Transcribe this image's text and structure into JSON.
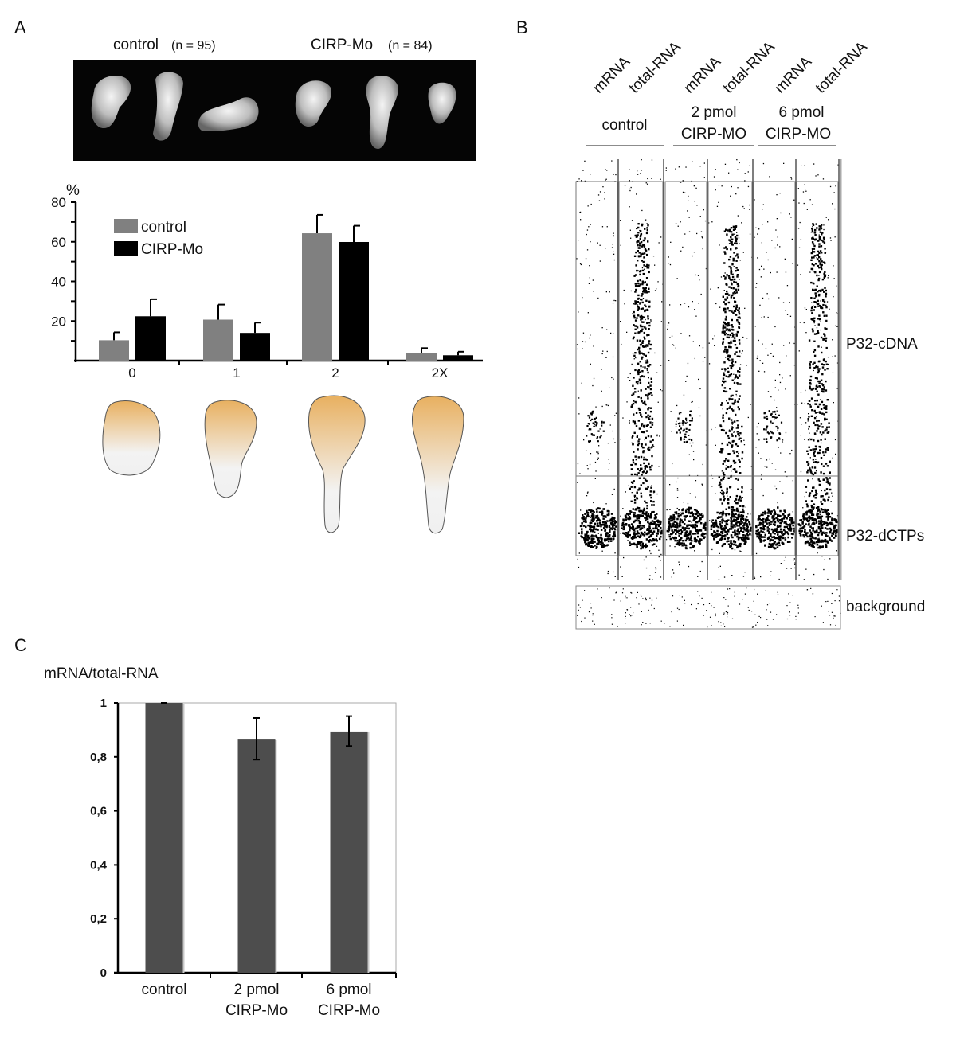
{
  "panels": {
    "A": {
      "letter": "A",
      "photo_titles": [
        {
          "name": "control",
          "n": "(n = 95)"
        },
        {
          "name": "CIRP-Mo",
          "n": "(n = 84)"
        }
      ],
      "y_unit": "%"
    },
    "B": {
      "letter": "B",
      "lane_labels": [
        "mRNA",
        "total-RNA",
        "mRNA",
        "total-RNA",
        "mRNA",
        "total-RNA"
      ],
      "groups": [
        {
          "line1": "control",
          "line2": ""
        },
        {
          "line1": "2 pmol",
          "line2": "CIRP-MO"
        },
        {
          "line1": "6 pmol",
          "line2": "CIRP-MO"
        }
      ],
      "row_labels": [
        "P32-cDNA",
        "P32-dCTPs",
        "background"
      ]
    },
    "C": {
      "letter": "C",
      "title": "mRNA/total-RNA"
    }
  },
  "chart_data": [
    {
      "panel": "A",
      "type": "bar",
      "ylabel": "%",
      "categories": [
        "0",
        "1",
        "2",
        "2X"
      ],
      "ylim": [
        0,
        80
      ],
      "yticks": [
        "80",
        "60",
        "40",
        "20"
      ],
      "legend_placement": "top-left",
      "series": [
        {
          "name": "control",
          "color": "#808080",
          "values": [
            10.3,
            20.7,
            64.3,
            4.0
          ],
          "error_upper": [
            14.3,
            28.3,
            73.6,
            6.3
          ]
        },
        {
          "name": "CIRP-Mo",
          "color": "#000000",
          "values": [
            22.4,
            14.0,
            59.9,
            2.7
          ],
          "error_upper": [
            31.0,
            19.2,
            68.1,
            4.5
          ]
        }
      ]
    },
    {
      "panel": "C",
      "type": "bar",
      "title": "mRNA/total-RNA",
      "categories": [
        [
          "control"
        ],
        [
          "2 pmol",
          "CIRP-Mo"
        ],
        [
          "6 pmol",
          "CIRP-Mo"
        ]
      ],
      "ylim": [
        0,
        1
      ],
      "yticks": [
        "1",
        "0,8",
        "0,6",
        "0,4",
        "0,2",
        "0"
      ],
      "color": "#4d4d4d",
      "values": [
        1.0,
        0.867,
        0.894
      ],
      "error_low": [
        1.0,
        0.79,
        0.84
      ],
      "error_high": [
        1.0,
        0.944,
        0.951
      ]
    }
  ]
}
